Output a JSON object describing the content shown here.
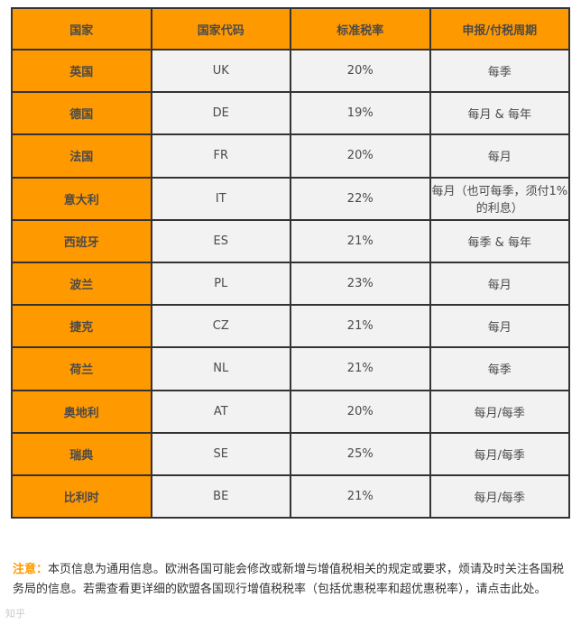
{
  "table": {
    "headers": [
      "国家",
      "国家代码",
      "标准税率",
      "申报/付税周期"
    ],
    "rows": [
      {
        "country": "英国",
        "code": "UK",
        "rate": "20%",
        "period": "每季"
      },
      {
        "country": "德国",
        "code": "DE",
        "rate": "19%",
        "period": "每月 & 每年"
      },
      {
        "country": "法国",
        "code": "FR",
        "rate": "20%",
        "period": "每月"
      },
      {
        "country": "意大利",
        "code": "IT",
        "rate": "22%",
        "period": "每月（也可每季，须付1%的利息）"
      },
      {
        "country": "西班牙",
        "code": "ES",
        "rate": "21%",
        "period": "每季 & 每年"
      },
      {
        "country": "波兰",
        "code": "PL",
        "rate": "23%",
        "period": "每月"
      },
      {
        "country": "捷克",
        "code": "CZ",
        "rate": "21%",
        "period": "每月"
      },
      {
        "country": "荷兰",
        "code": "NL",
        "rate": "21%",
        "period": "每季"
      },
      {
        "country": "奥地利",
        "code": "AT",
        "rate": "20%",
        "period": "每月/每季"
      },
      {
        "country": "瑞典",
        "code": "SE",
        "rate": "25%",
        "period": "每月/每季"
      },
      {
        "country": "比利时",
        "code": "BE",
        "rate": "21%",
        "period": "每月/每季"
      }
    ]
  },
  "note": {
    "label": "注意：",
    "text": "本页信息为通用信息。欧洲各国可能会修改或新增与增值税相关的规定或要求，烦请及时关注各国税务局的信息。若需查看更详细的欧盟各国现行增值税税率（包括优惠税率和超优惠税率），请点击此处。"
  },
  "watermark": "知乎"
}
